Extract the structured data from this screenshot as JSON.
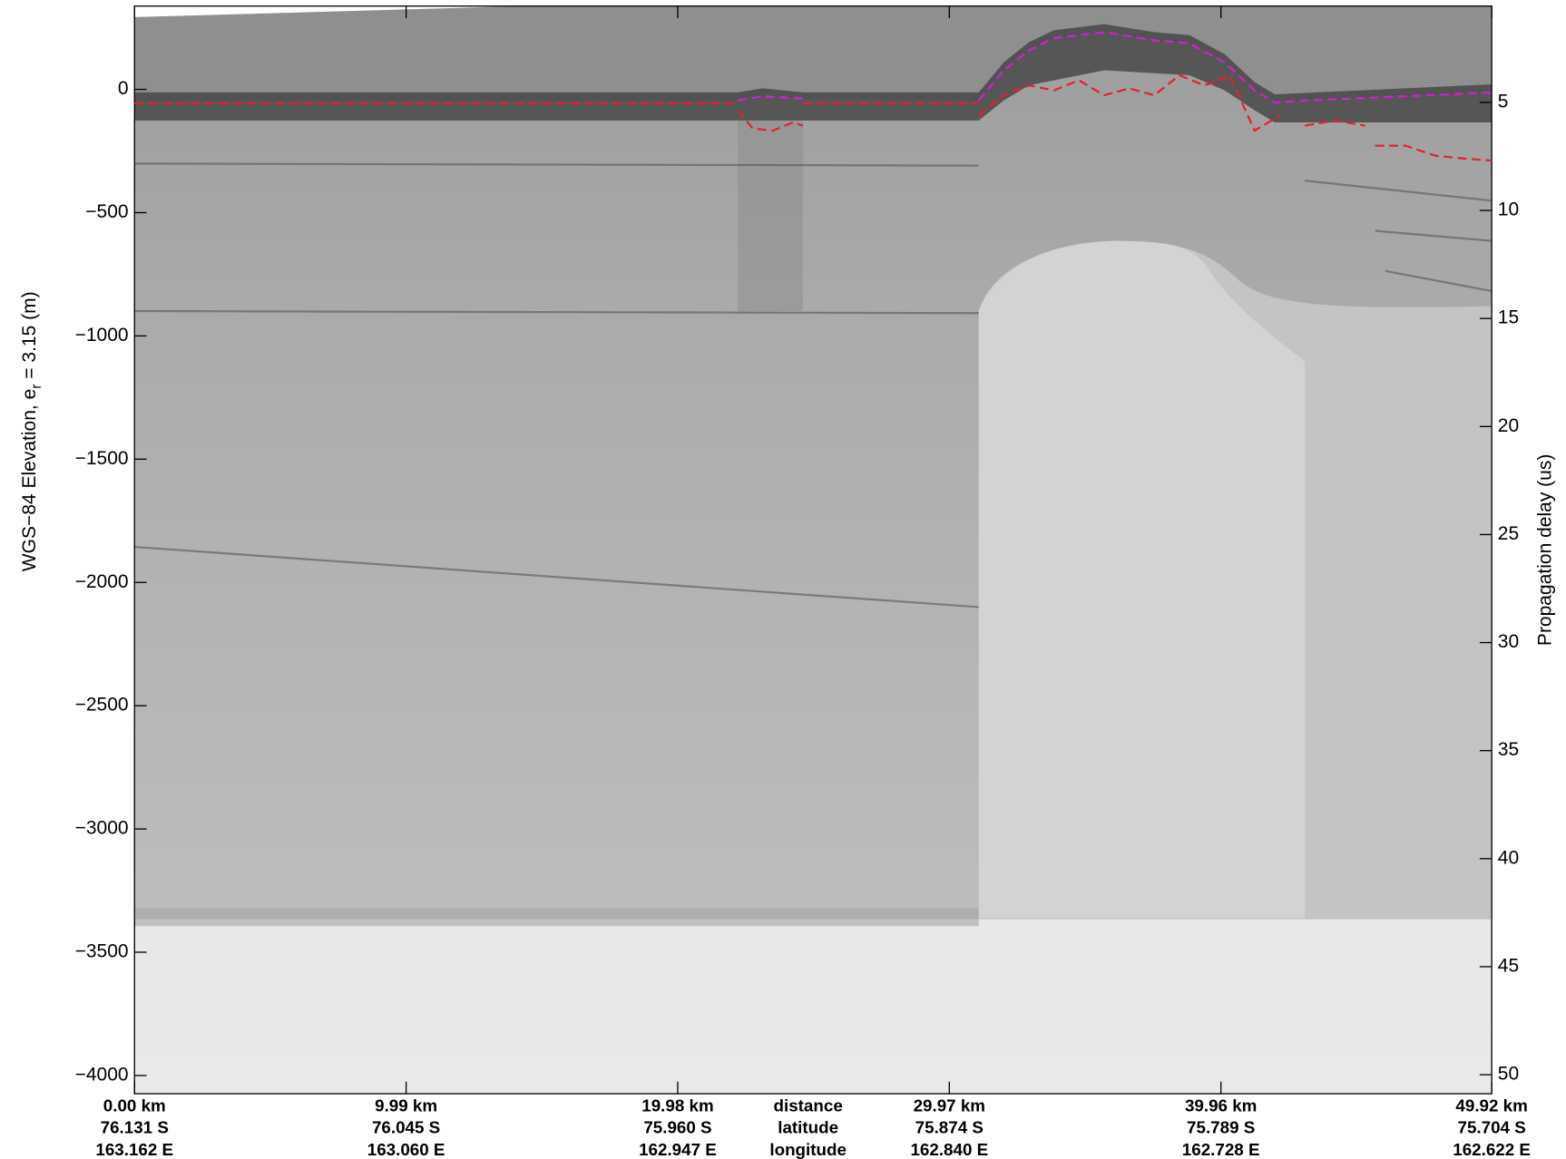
{
  "chart_data": {
    "type": "line",
    "ylabel": {
      "text": "WGS−84 Elevation, e",
      "subscript": "r",
      "suffix": " = 3.15 (m)"
    },
    "y2label": "Propagation delay (us)",
    "xlim": [
      0,
      49.92
    ],
    "xticks": [
      {
        "value": 0,
        "label": "0.00 km"
      },
      {
        "value": 9.99,
        "label": "9.99 km"
      },
      {
        "value": 19.98,
        "label": "19.98 km"
      },
      {
        "value": 29.97,
        "label": "29.97 km"
      },
      {
        "value": 39.96,
        "label": "39.96 km"
      },
      {
        "value": 49.92,
        "label": "49.92 km"
      }
    ],
    "latitude_labels": [
      "76.131 S",
      "76.045 S",
      "75.960 S",
      "75.874 S",
      "75.789 S",
      "75.704 S"
    ],
    "longitude_labels": [
      "163.162 E",
      "163.060 E",
      "162.947 E",
      "162.840 E",
      "162.728 E",
      "162.622 E"
    ],
    "row_labels": [
      "distance",
      "latitude",
      "longitude"
    ],
    "ylim": [
      -4074,
      338
    ],
    "yticks": [
      0,
      {
        "value": -500,
        "label": "−500"
      },
      {
        "value": -1000,
        "label": "−1000"
      },
      {
        "value": -1500,
        "label": "−1500"
      },
      {
        "value": -2000,
        "label": "−2000"
      },
      {
        "value": -2500,
        "label": "−2500"
      },
      {
        "value": -3000,
        "label": "−3000"
      },
      {
        "value": -3500,
        "label": "−3500"
      },
      {
        "value": -4000,
        "label": "−4000"
      }
    ],
    "y2lim": [
      50.88,
      0.54
    ],
    "y2ticks": [
      5,
      10,
      15,
      20,
      25,
      30,
      35,
      40,
      45,
      50
    ],
    "dashed": true,
    "series": [
      {
        "color": "#e8202a",
        "x": [
          0,
          22.19,
          null,
          24.59,
          31.05
        ],
        "values": [
          -57,
          -57,
          null,
          -57,
          -57
        ]
      },
      {
        "color": "#d21fd6",
        "x": [
          22.19,
          23.11,
          24.59,
          null,
          31.05,
          31.97,
          32.9,
          33.82,
          35.66,
          37.51,
          38.8,
          40.1,
          41.2,
          41.94,
          43.05,
          44.89,
          46.74,
          49.92
        ],
        "values": [
          -45,
          -28,
          -37,
          null,
          -45,
          77,
          159,
          208,
          232,
          199,
          187,
          110,
          -4,
          -53,
          -45,
          -37,
          -28,
          -12
        ]
      },
      {
        "color": "#e8202a",
        "x": [
          22.19,
          22.74,
          23.48,
          24.22,
          24.59,
          null,
          31.05,
          31.97,
          32.9,
          33.82,
          34.74,
          35.66,
          36.59,
          37.51,
          38.43,
          39.36,
          40.28,
          41.2,
          42.13,
          null,
          43.05,
          44.16,
          45.26,
          null,
          45.63,
          46.74,
          47.85,
          48.96,
          49.92
        ],
        "values": [
          -85,
          -159,
          -167,
          -134,
          -147,
          null,
          -106,
          -24,
          16,
          -4,
          37,
          -24,
          4,
          -24,
          57,
          16,
          57,
          -167,
          -106,
          null,
          -147,
          -126,
          -147,
          null,
          -228,
          -228,
          -269,
          -281,
          -289
        ]
      }
    ]
  }
}
